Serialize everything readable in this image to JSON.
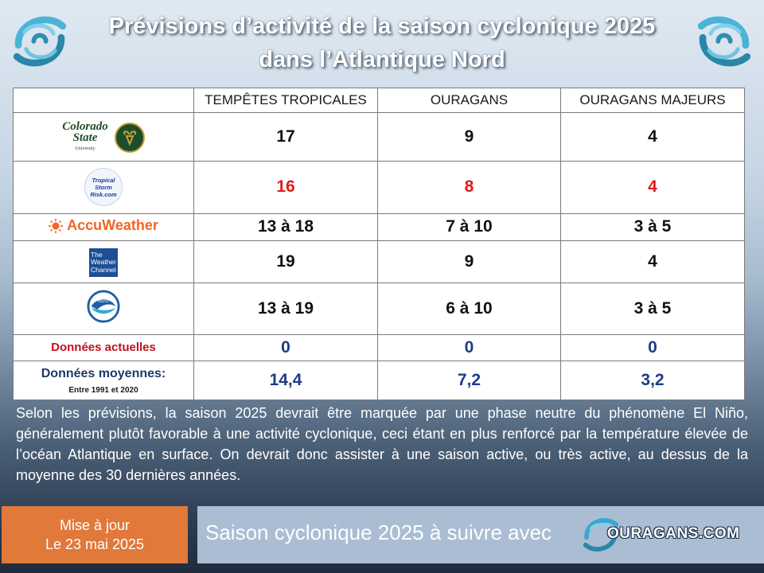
{
  "header": {
    "title_line1": "Prévisions d’activité de la saison cyclonique 2025",
    "title_line2": "dans l’Atlantique Nord"
  },
  "table": {
    "columns": [
      "TEMPÊTES TROPICALES",
      "OURAGANS",
      "OURAGANS MAJEURS"
    ],
    "rows": [
      {
        "source": "Colorado State University",
        "logo_text": [
          "Colorado",
          "State",
          "University"
        ],
        "values": [
          "17",
          "9",
          "4"
        ]
      },
      {
        "source": "Tropical Storm Risk",
        "logo_text": [
          "Tropical",
          "Storm",
          "Risk.com"
        ],
        "values": [
          "16",
          "8",
          "4"
        ]
      },
      {
        "source": "AccuWeather",
        "logo_text": [
          "AccuWeather"
        ],
        "values": [
          "13 à 18",
          "7 à 10",
          "3 à 5"
        ]
      },
      {
        "source": "The Weather Channel",
        "logo_text": [
          "The",
          "Weather",
          "Channel"
        ],
        "values": [
          "19",
          "9",
          "4"
        ]
      },
      {
        "source": "NOAA",
        "logo_text": [
          "NOAA"
        ],
        "values": [
          "13 à 19",
          "6 à 10",
          "3 à 5"
        ]
      },
      {
        "label": "Données actuelles",
        "values": [
          "0",
          "0",
          "0"
        ]
      },
      {
        "label": "Données moyennes:",
        "sublabel": "Entre 1991 et 2020",
        "values": [
          "14,4",
          "7,2",
          "3,2"
        ]
      }
    ]
  },
  "paragraph": "Selon les prévisions, la saison 2025 devrait être marquée par une phase neutre du phénomène El Niño, généralement plutôt favorable à une activité cyclonique, ceci étant en plus renforcé par la température élevée de l’océan Atlantique en surface. On devrait donc assister à une saison active, ou très active, au dessus de la moyenne des 30 dernières années.",
  "footer": {
    "update_line1": "Mise à jour",
    "update_line2": "Le 23 mai 2025",
    "follow_text": "Saison cyclonique 2025 à suivre avec",
    "brand": "OURAGANS.COM"
  },
  "colors": {
    "update_box": "#e0793a",
    "follow_box": "#aabdd3",
    "highlight_red": "#e21a1a",
    "values_blue": "#1f3a8a"
  },
  "icons": [
    "hurricane-swirl-icon",
    "csu-ram-logo",
    "tsr-logo",
    "accuweather-sun-icon",
    "weather-channel-logo",
    "noaa-logo"
  ]
}
